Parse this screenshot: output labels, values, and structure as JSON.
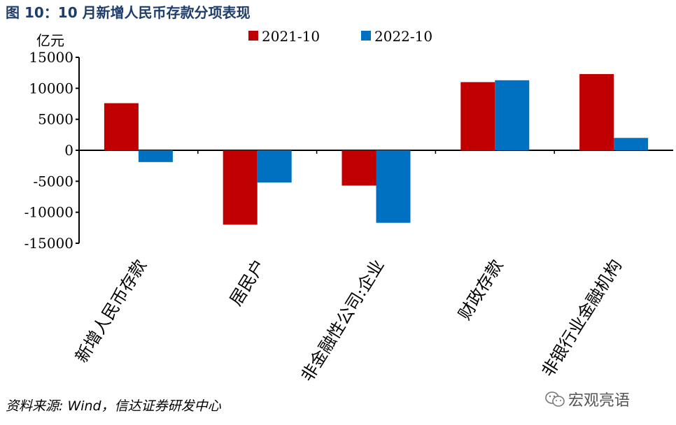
{
  "title": "图 10：10 月新增人民币存款分项表现",
  "unit_label": "亿元",
  "source": "资料来源: Wind，信达证券研发中心",
  "watermark": "宏观亮语",
  "chart_data": {
    "type": "bar",
    "title": "",
    "xlabel": "",
    "ylabel": "亿元",
    "ylim": [
      -15000,
      15000
    ],
    "yticks": [
      15000,
      10000,
      5000,
      0,
      -5000,
      -10000,
      -15000
    ],
    "categories": [
      "新增人民币存款",
      "居民户",
      "非金融性公司:企业",
      "财政存款",
      "非银行业金融机构"
    ],
    "series": [
      {
        "name": "2021-10",
        "color": "#c00000",
        "values": [
          7600,
          -12000,
          -5700,
          11000,
          12300
        ]
      },
      {
        "name": "2022-10",
        "color": "#0070c0",
        "values": [
          -1900,
          -5200,
          -11700,
          11300,
          2000
        ]
      }
    ],
    "legend_position": "top",
    "grid": false
  }
}
